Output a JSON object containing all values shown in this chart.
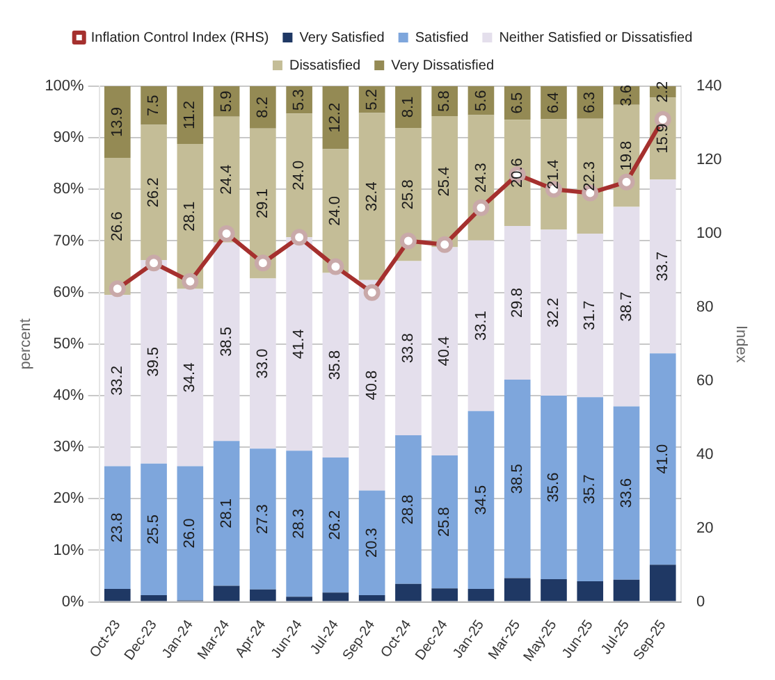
{
  "chart_data": {
    "type": "bar",
    "stacked": true,
    "categories": [
      "Oct-23",
      "Dec-23",
      "Jan-24",
      "Mar-24",
      "Apr-24",
      "Jun-24",
      "Jul-24",
      "Sep-24",
      "Oct-24",
      "Dec-24",
      "Jan-25",
      "Mar-25",
      "May-25",
      "Jun-25",
      "Jul-25",
      "Sep-25"
    ],
    "series": [
      {
        "name": "Very Satisfied",
        "color": "#1f3864",
        "values": [
          2.5,
          1.3,
          0.3,
          3.1,
          2.4,
          1.0,
          1.8,
          1.3,
          3.5,
          2.6,
          2.5,
          4.6,
          4.4,
          4.0,
          4.3,
          7.2
        ],
        "value_labels": [
          null,
          null,
          null,
          null,
          null,
          null,
          null,
          null,
          null,
          null,
          null,
          null,
          null,
          null,
          null,
          null
        ]
      },
      {
        "name": "Satisfied",
        "color": "#7ea6dc",
        "values": [
          23.8,
          25.5,
          26.0,
          28.1,
          27.3,
          28.3,
          26.2,
          20.3,
          28.8,
          25.8,
          34.5,
          38.5,
          35.6,
          35.7,
          33.6,
          41.0
        ],
        "value_labels": [
          "23.8",
          "25.5",
          "26.0",
          "28.1",
          "27.3",
          "28.3",
          "26.2",
          "20.3",
          "28.8",
          "25.8",
          "34.5",
          "38.5",
          "35.6",
          "35.7",
          "33.6",
          "41.0"
        ]
      },
      {
        "name": "Neither Satisfied or Dissatisfied",
        "color": "#e4dfec",
        "values": [
          33.2,
          39.5,
          34.4,
          38.5,
          33.0,
          41.4,
          35.8,
          40.8,
          33.8,
          40.4,
          33.1,
          29.8,
          32.2,
          31.7,
          38.7,
          33.7
        ],
        "value_labels": [
          "33.2",
          "39.5",
          "34.4",
          "38.5",
          "33.0",
          "41.4",
          "35.8",
          "40.8",
          "33.8",
          "40.4",
          "33.1",
          "29.8",
          "32.2",
          "31.7",
          "38.7",
          "33.7"
        ]
      },
      {
        "name": "Dissatisfied",
        "color": "#c4bd97",
        "values": [
          26.6,
          26.2,
          28.1,
          24.4,
          29.1,
          24.0,
          24.0,
          32.4,
          25.8,
          25.4,
          24.3,
          20.6,
          21.4,
          22.3,
          19.8,
          15.9
        ],
        "value_labels": [
          "26.6",
          "26.2",
          "28.1",
          "24.4",
          "29.1",
          "24.0",
          "24.0",
          "32.4",
          "25.8",
          "25.4",
          "24.3",
          "20.6",
          "21.4",
          "22.3",
          "19.8",
          "15.9"
        ]
      },
      {
        "name": "Very Dissatisfied",
        "color": "#948a54",
        "values": [
          13.9,
          7.5,
          11.2,
          5.9,
          8.2,
          5.3,
          12.2,
          5.2,
          8.1,
          5.8,
          5.6,
          6.5,
          6.4,
          6.3,
          3.6,
          2.2
        ],
        "value_labels": [
          "13.9",
          "7.5",
          "11.2",
          "5.9",
          "8.2",
          "5.3",
          "12.2",
          "5.2",
          "8.1",
          "5.8",
          "5.6",
          "6.5",
          "6.4",
          "6.3",
          "3.6",
          "2.2"
        ]
      },
      {
        "name": "Inflation Control Index (RHS)",
        "type": "line",
        "axis": "y2",
        "marker": "circle",
        "color": "#a5302e",
        "values": [
          85,
          92,
          87,
          100,
          92,
          99,
          91,
          84,
          98,
          97,
          107,
          116,
          112,
          111,
          114,
          131
        ]
      }
    ],
    "ylabel": "percent",
    "y2label": "Index",
    "ylim": [
      0,
      100
    ],
    "yticks": [
      {
        "value": 0,
        "label": "0%"
      },
      {
        "value": 10,
        "label": "10%"
      },
      {
        "value": 20,
        "label": "20%"
      },
      {
        "value": 30,
        "label": "30%"
      },
      {
        "value": 40,
        "label": "40%"
      },
      {
        "value": 50,
        "label": "50%"
      },
      {
        "value": 60,
        "label": "60%"
      },
      {
        "value": 70,
        "label": "70%"
      },
      {
        "value": 80,
        "label": "80%"
      },
      {
        "value": 90,
        "label": "90%"
      },
      {
        "value": 100,
        "label": "100%"
      }
    ],
    "y2lim": [
      0,
      140
    ],
    "y2ticks": [
      0,
      20,
      40,
      60,
      80,
      100,
      120,
      140
    ],
    "grid": "y",
    "legend": "top"
  }
}
